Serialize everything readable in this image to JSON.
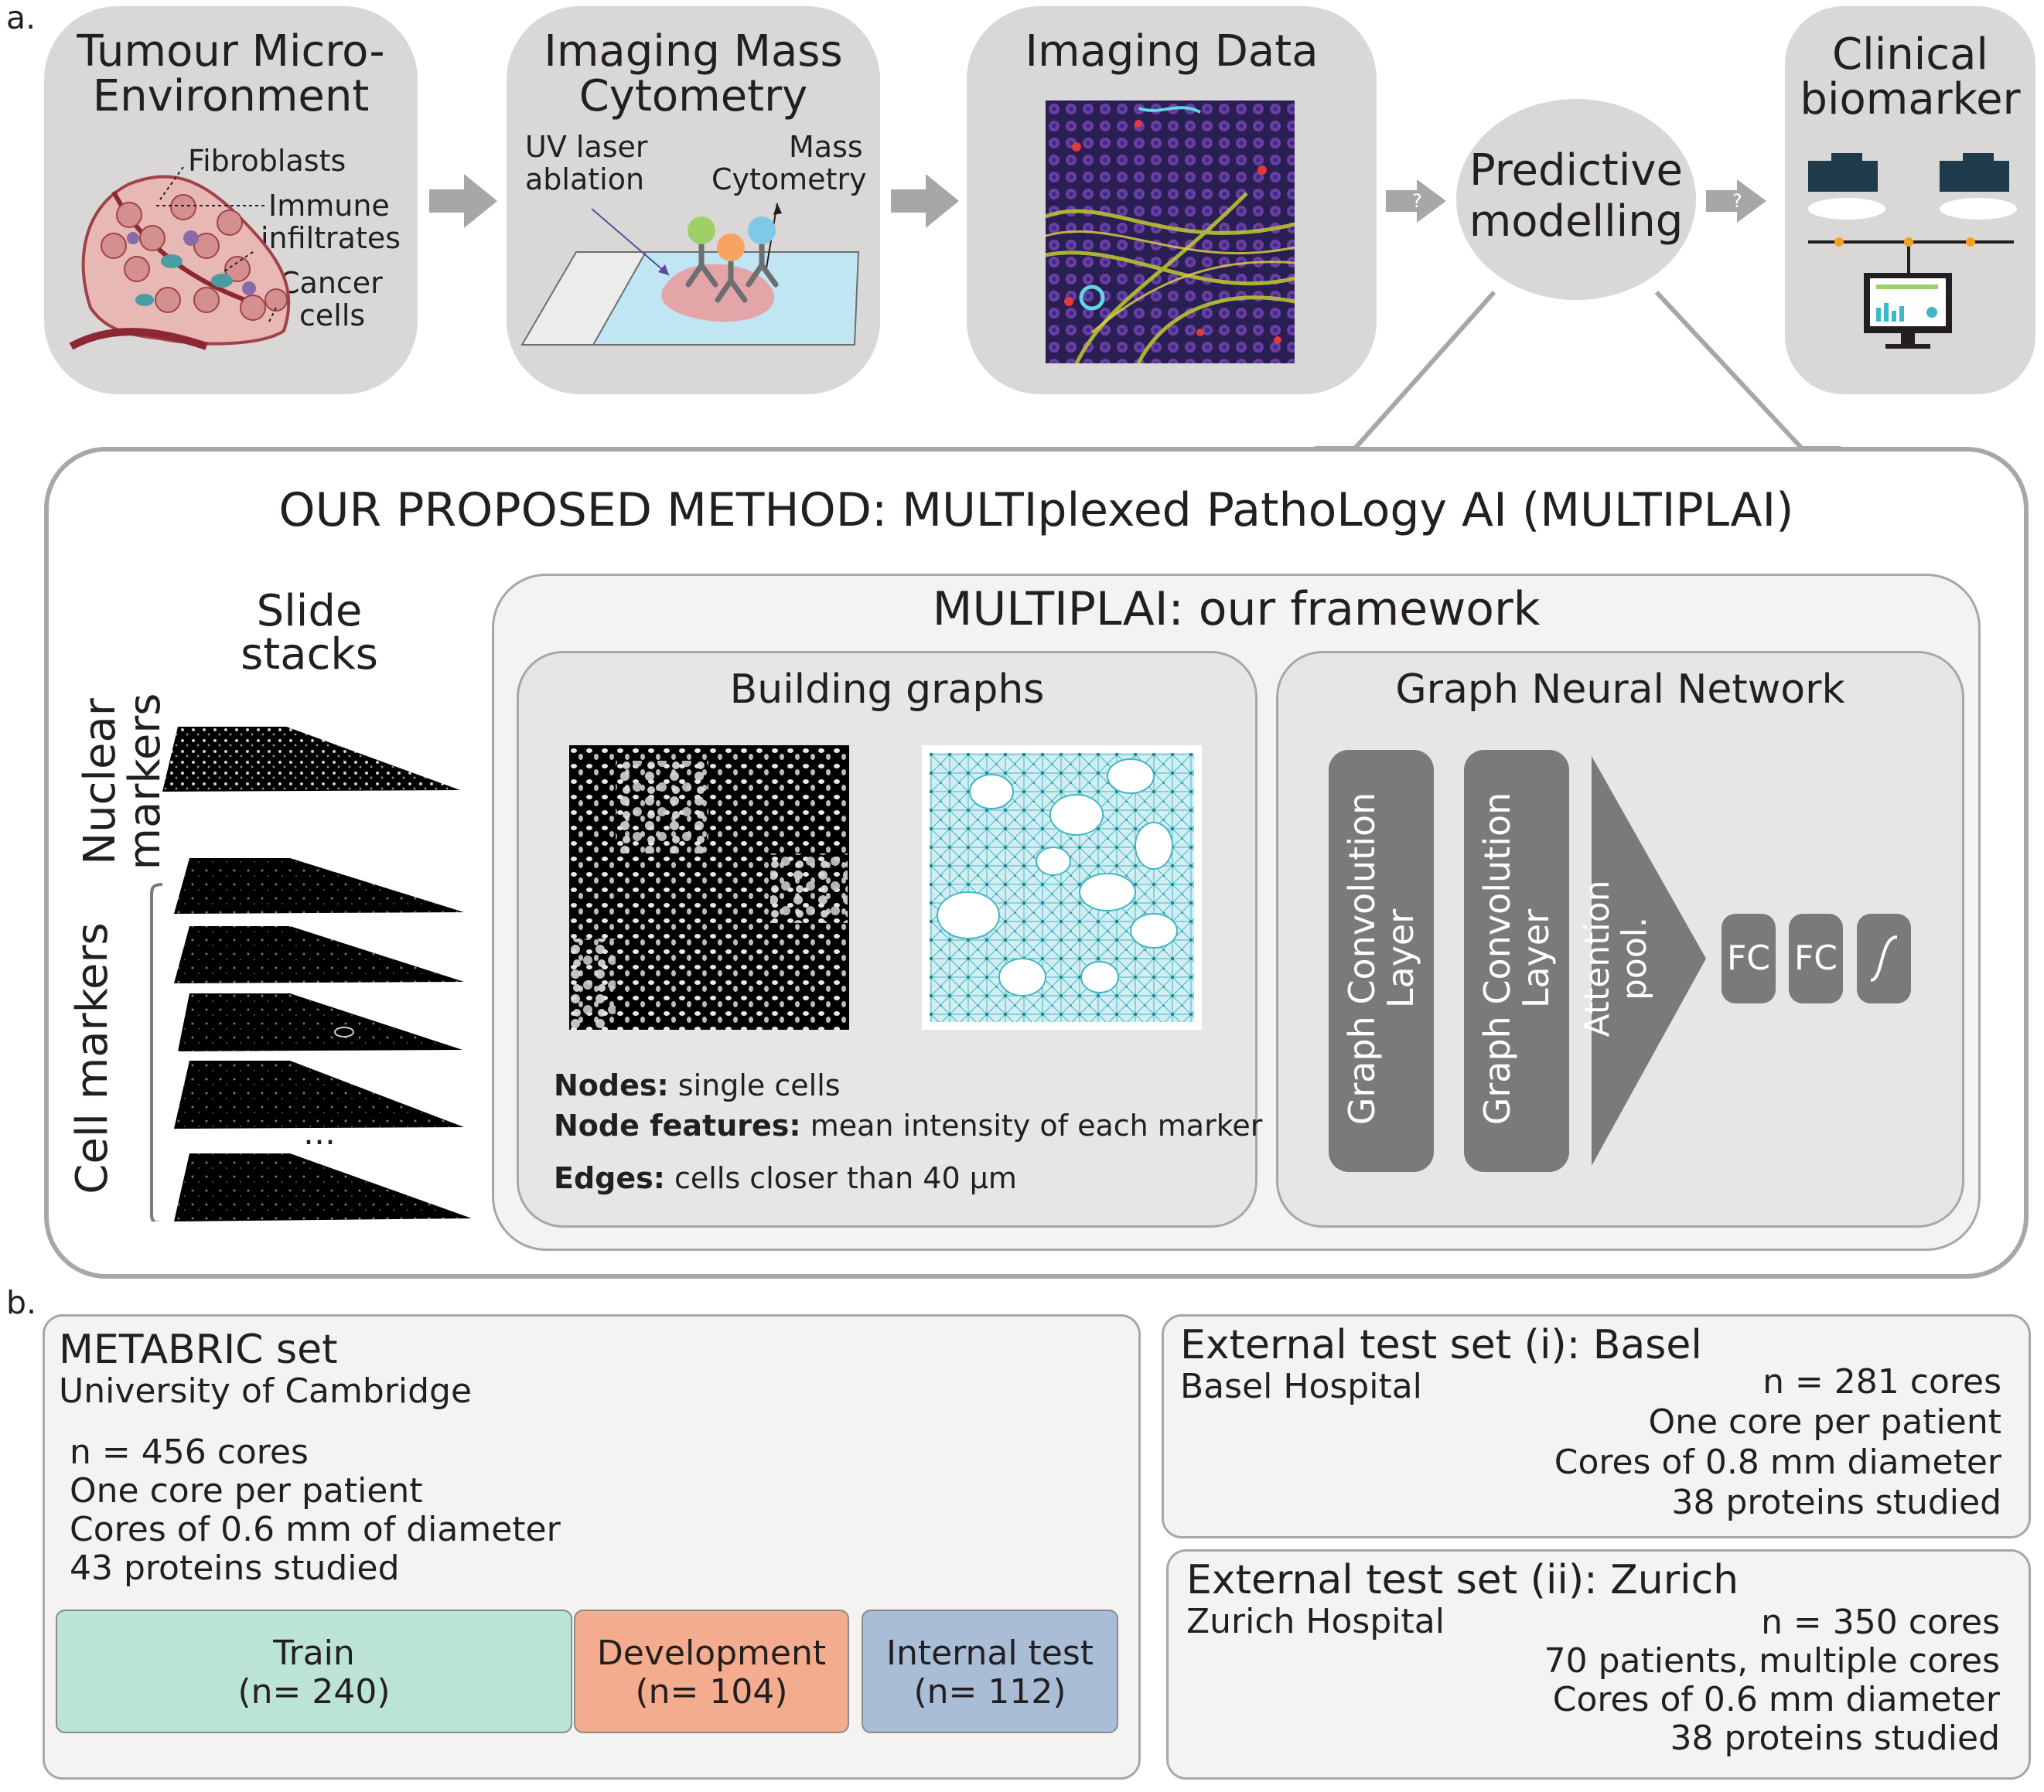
{
  "panel_a": {
    "label": "a.",
    "tme": {
      "title_1": "Tumour Micro-",
      "title_2": "Environment",
      "fibroblasts": "Fibroblasts",
      "immune_1": "Immune",
      "immune_2": "infiltrates",
      "cancer_1": "Cancer",
      "cancer_2": "cells"
    },
    "imc": {
      "title_1": "Imaging Mass",
      "title_2": "Cytometry",
      "uv_1": "UV laser",
      "uv_2": "ablation",
      "mass_1": "Mass",
      "mass_2": "Cytometry"
    },
    "imaging": {
      "title": "Imaging Data"
    },
    "predictive": {
      "line_1": "Predictive",
      "line_2": "modelling"
    },
    "question_mark": "?",
    "clinical": {
      "title_1": "Clinical",
      "title_2": "biomarker"
    },
    "method": {
      "title": "OUR PROPOSED METHOD:  MULTIplexed PathoLogy AI (MULTIPLAI)",
      "slide_stacks_1": "Slide",
      "slide_stacks_2": "stacks",
      "nuclear_1": "Nuclear",
      "nuclear_2": "markers",
      "cell_markers": "Cell markers",
      "ellipsis": "...",
      "framework_title": "MULTIPLAI: our framework",
      "building": {
        "title": "Building graphs",
        "nodes_k": "Nodes:",
        "nodes_v": " single cells",
        "features_k": "Node features:",
        "features_v": " mean intensity of each marker",
        "edges_k": "Edges:",
        "edges_v": " cells closer than 40 µm"
      },
      "gnn": {
        "title": "Graph Neural Network",
        "gc1_1": "Graph Convolution",
        "gc1_2": "Layer",
        "gc2_1": "Graph Convolution",
        "gc2_2": "Layer",
        "att_1": "Attention",
        "att_2": "pool.",
        "fc1": "FC",
        "fc2": "FC"
      }
    }
  },
  "panel_b": {
    "label": "b.",
    "metabric": {
      "title": "METABRIC set",
      "institution": "University of Cambridge",
      "lines": [
        "n = 456 cores",
        "One core per patient",
        "Cores of 0.6 mm of diameter",
        "43 proteins studied"
      ],
      "splits": [
        {
          "label": "Train",
          "n": "(n= 240)",
          "color": "#bce3d8"
        },
        {
          "label": "Development",
          "n": "(n= 104)",
          "color": "#f4ac8e"
        },
        {
          "label": "Internal test",
          "n": "(n= 112)",
          "color": "#a9bdd6"
        }
      ]
    },
    "basel": {
      "title": "External test set (i): Basel",
      "institution": "Basel Hospital",
      "lines": [
        "n = 281 cores",
        "One core per patient",
        "Cores of 0.8 mm diameter",
        "38 proteins studied"
      ]
    },
    "zurich": {
      "title": "External test set (ii): Zurich",
      "institution": "Zurich Hospital",
      "lines": [
        "n = 350 cores",
        "70 patients, multiple cores",
        "Cores of 0.6 mm diameter",
        "38 proteins studied"
      ]
    }
  },
  "colors": {
    "grey_box": "#d9d8d6",
    "light_box": "#f4f3f2",
    "mid_box": "#e6e6e6",
    "dark_block": "#7b7a79",
    "teal": "#3fb6c5"
  }
}
